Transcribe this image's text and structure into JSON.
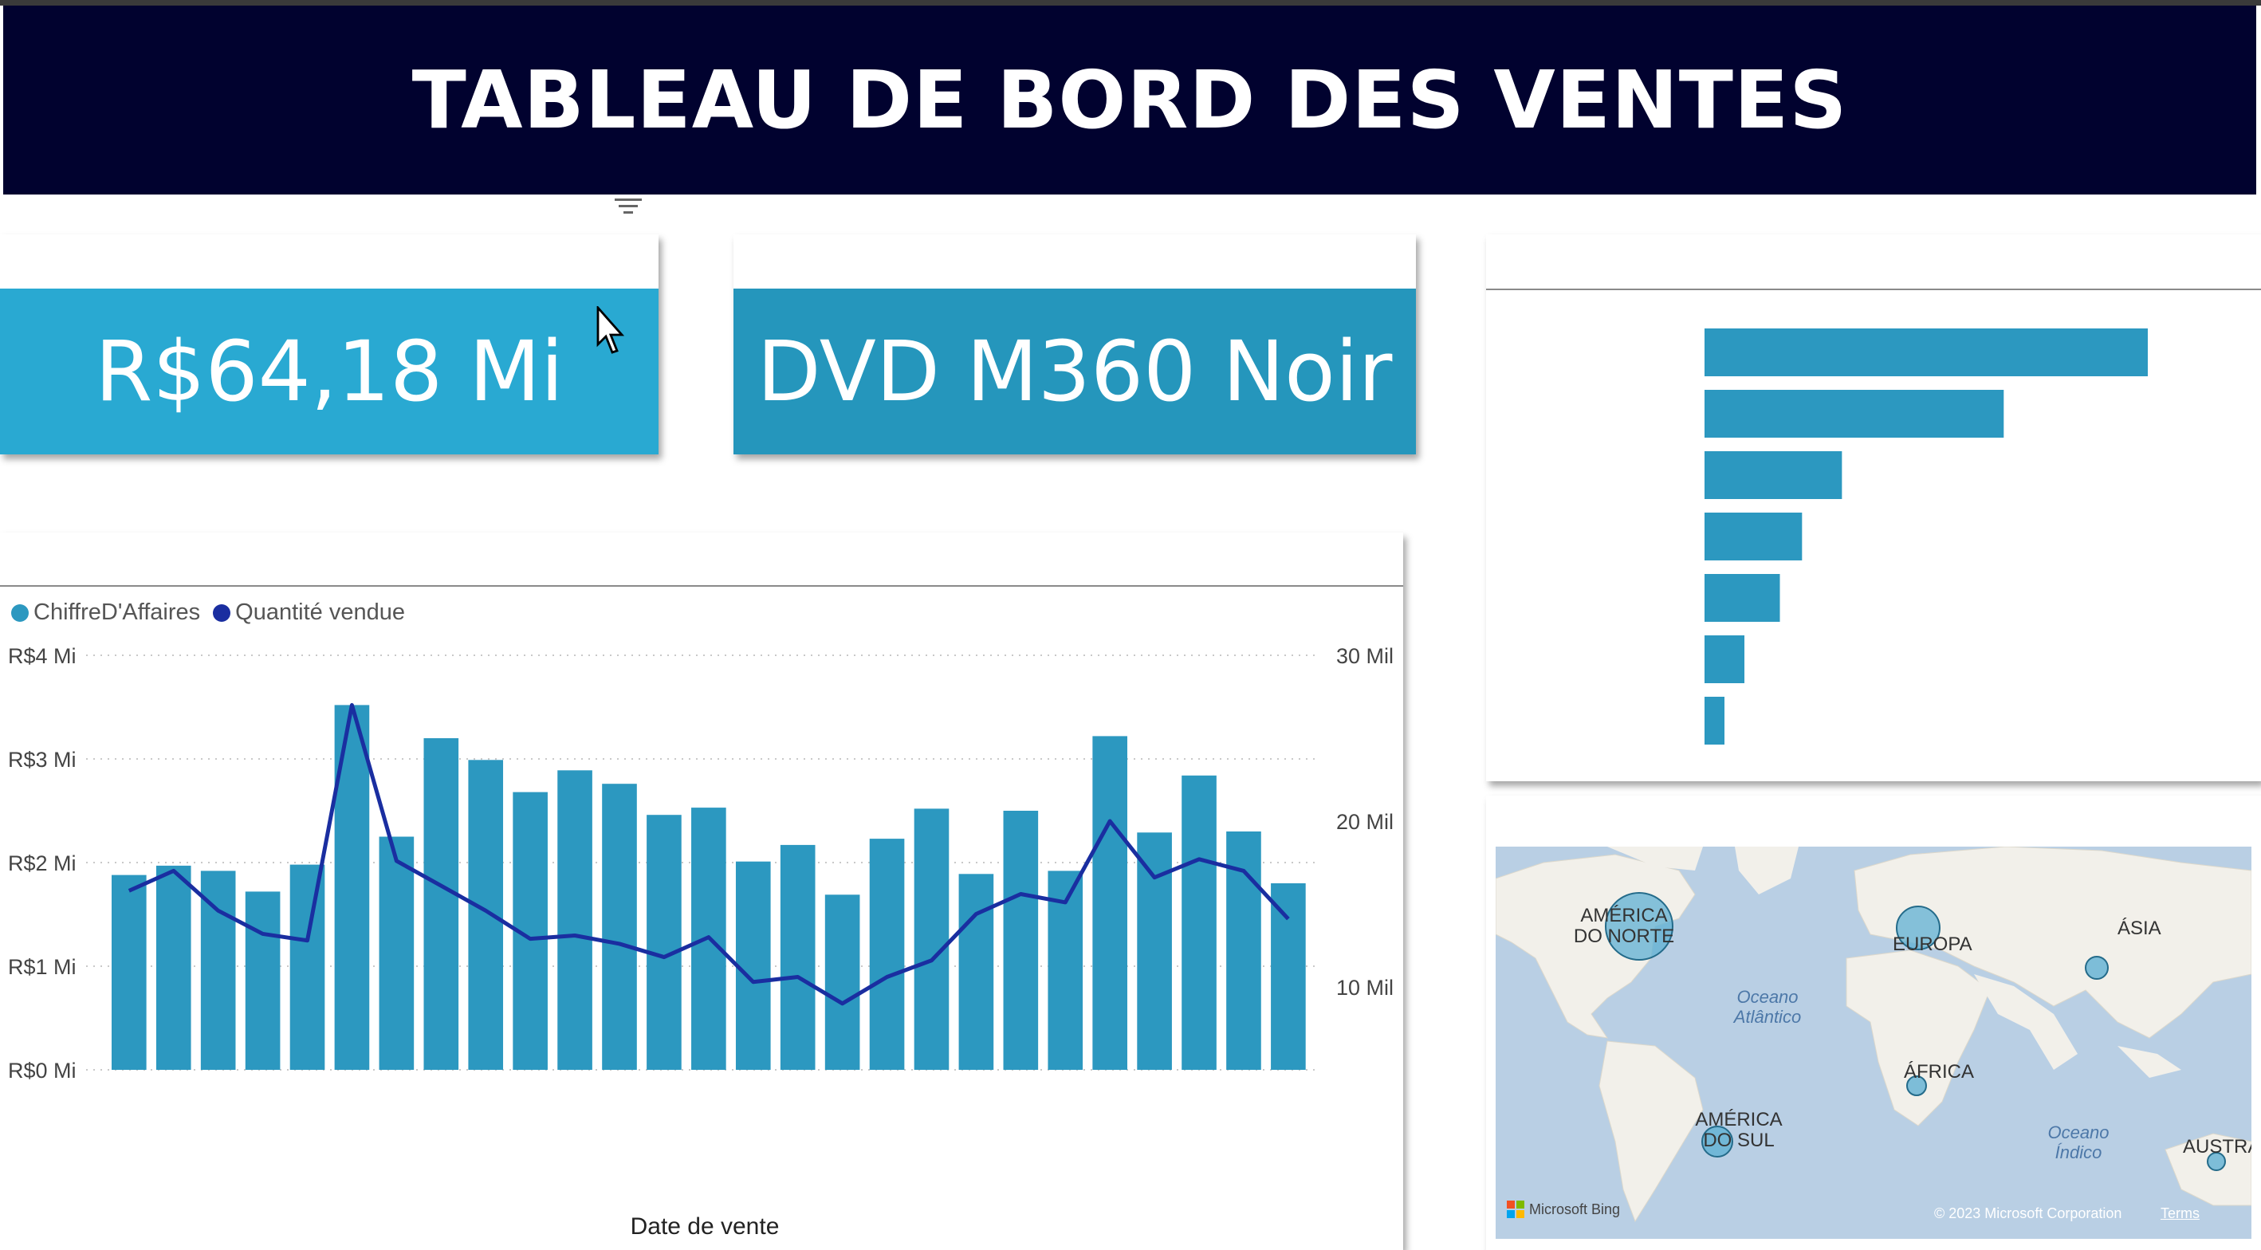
{
  "header": {
    "title": "TABLEAU DE BORD DES VENTES"
  },
  "kpi_revenue": {
    "value": "R$64,18 Mi",
    "color": "#29a9d2"
  },
  "kpi_product": {
    "value": "DVD M360 Noir",
    "color": "#2596bc"
  },
  "chart_data": [
    {
      "type": "bar",
      "orientation": "vertical",
      "xlabel": "Date de vente",
      "legend_position": "top-left",
      "grid": true,
      "series": [
        {
          "name": "ChiffreD'Affaires",
          "type": "bar",
          "axis": "left",
          "color": "#2c98c0",
          "values": [
            1.88,
            1.97,
            1.92,
            1.72,
            1.98,
            3.52,
            2.25,
            3.2,
            2.99,
            2.68,
            2.89,
            2.76,
            2.46,
            2.53,
            2.01,
            2.17,
            1.69,
            2.23,
            2.52,
            1.89,
            2.5,
            1.92,
            3.22,
            2.29,
            2.84,
            2.3,
            1.8
          ]
        },
        {
          "name": "Quantité vendue",
          "type": "line",
          "axis": "right",
          "color": "#1a2ea0",
          "values": [
            15.8,
            17.0,
            14.6,
            13.2,
            12.8,
            27.0,
            17.6,
            16.1,
            14.6,
            12.9,
            13.1,
            12.6,
            11.8,
            13.0,
            10.3,
            10.6,
            9.0,
            10.6,
            11.6,
            14.4,
            15.6,
            15.1,
            20.0,
            16.6,
            17.7,
            17.0,
            14.1
          ]
        }
      ],
      "y_left": {
        "ticks": [
          "R$0 Mi",
          "R$1 Mi",
          "R$2 Mi",
          "R$3 Mi",
          "R$4 Mi"
        ],
        "range": [
          0,
          4
        ]
      },
      "y_right": {
        "ticks": [
          "10 Mil",
          "20 Mil",
          "30 Mil"
        ],
        "range": [
          5,
          30
        ]
      }
    },
    {
      "type": "bar",
      "orientation": "horizontal",
      "color": "#2c98c0",
      "values": [
        100,
        67.5,
        31,
        22,
        17,
        9,
        4.5
      ]
    }
  ],
  "map": {
    "bubble_color": "#5fb0d3",
    "regions": [
      {
        "label": "AMÉRICA DO NORTE",
        "size": "large"
      },
      {
        "label": "EUROPA",
        "size": "medium"
      },
      {
        "label": "ÁSIA",
        "size": "small"
      },
      {
        "label": "ÁFRICA",
        "size": "small"
      },
      {
        "label": "AMÉRICA DO SUL",
        "size": "small"
      },
      {
        "label": "AUSTRÁ",
        "size": "small"
      }
    ],
    "oceans": [
      "Oceano Atlântico",
      "Oceano Índico"
    ],
    "attribution": "Microsoft Bing",
    "copyright": "© 2023 Microsoft Corporation",
    "terms": "Terms"
  }
}
